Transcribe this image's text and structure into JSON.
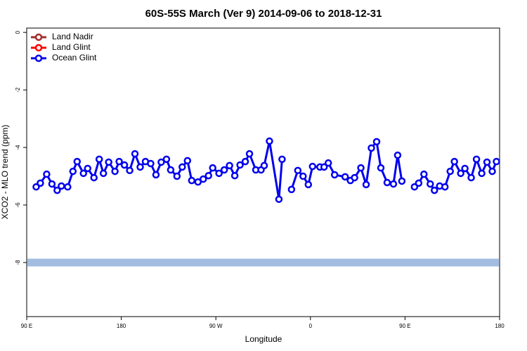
{
  "chart_data": {
    "type": "line",
    "title": "60S-55S March (Ver 9)   2014-09-06 to 2018-12-31",
    "xlabel": "Longitude",
    "ylabel": "XCO2 - MLO trend (ppm)",
    "xlim": [
      90,
      540
    ],
    "ylim": [
      -9.88,
      0.15
    ],
    "xticks": [
      {
        "value": 90,
        "label": "90 E"
      },
      180,
      {
        "value": 270,
        "label": "90 W"
      },
      {
        "value": 360,
        "label": "0"
      },
      {
        "value": 450,
        "label": "90 E"
      },
      {
        "value": 540,
        "label": "180"
      }
    ],
    "yticks": [
      0,
      -2,
      -4,
      -6,
      -8
    ],
    "hline": -8,
    "hline_color": "#a3bde0",
    "legend": "top-left",
    "x": [
      99,
      103,
      109,
      114,
      119,
      123,
      129,
      134,
      138,
      144,
      148,
      154,
      159,
      163,
      168,
      174,
      178,
      183,
      188,
      193,
      198,
      203,
      208,
      213,
      218,
      223,
      227,
      233,
      238,
      243,
      247,
      253,
      258,
      263,
      267,
      273,
      278,
      283,
      288,
      293,
      298,
      302,
      308,
      313,
      316,
      321,
      330,
      333,
      338,
      342,
      348,
      353,
      358,
      362,
      369,
      373,
      377,
      383,
      393,
      398,
      402,
      408,
      413,
      418,
      423,
      427,
      433,
      439,
      443,
      447,
      452,
      459,
      463,
      468,
      474,
      478,
      483,
      488,
      493,
      497,
      503,
      507,
      513,
      518,
      523,
      528,
      533,
      537
    ],
    "series": [
      {
        "name": "Land Nadir",
        "color": "#a52a2a",
        "values": [
          null,
          null,
          null,
          null,
          null,
          null,
          null,
          null,
          null,
          null,
          null,
          null,
          null,
          null,
          null,
          null,
          null,
          null,
          null,
          null,
          null,
          null,
          null,
          null,
          null,
          null,
          null,
          null,
          null,
          null,
          null,
          null,
          null,
          null,
          null,
          null,
          null,
          null,
          null,
          null,
          null,
          null,
          null,
          null,
          null,
          null,
          null,
          null,
          null,
          null,
          null,
          null,
          null,
          null,
          null,
          null,
          null,
          null,
          null,
          null,
          null,
          null,
          null,
          null,
          null,
          null,
          null,
          null,
          null,
          null,
          null,
          null,
          null,
          null,
          null,
          null,
          null,
          null,
          null,
          null,
          null,
          null,
          null,
          null,
          null,
          null,
          null,
          null
        ]
      },
      {
        "name": "Land Glint",
        "color": "#ff0000",
        "values": [
          null,
          null,
          null,
          null,
          null,
          null,
          null,
          null,
          null,
          null,
          null,
          null,
          null,
          null,
          null,
          null,
          null,
          null,
          null,
          null,
          null,
          null,
          null,
          null,
          null,
          null,
          null,
          null,
          null,
          null,
          null,
          null,
          null,
          null,
          null,
          null,
          null,
          null,
          null,
          null,
          null,
          null,
          null,
          null,
          null,
          null,
          null,
          null,
          null,
          null,
          null,
          null,
          null,
          null,
          null,
          null,
          null,
          null,
          null,
          null,
          null,
          null,
          null,
          null,
          null,
          null,
          null,
          null,
          null,
          null,
          null,
          null,
          null,
          null,
          null,
          null,
          null,
          null,
          null,
          null,
          null,
          null,
          null,
          null,
          null,
          null,
          null,
          null
        ]
      },
      {
        "name": "Ocean Glint",
        "color": "#0000ee",
        "values": [
          -5.37,
          -5.24,
          -4.93,
          -5.27,
          -5.49,
          -5.34,
          -5.37,
          -4.83,
          -4.49,
          -4.9,
          -4.73,
          -5.05,
          -4.41,
          -4.9,
          -4.51,
          -4.83,
          -4.49,
          -4.61,
          -4.8,
          -4.22,
          -4.68,
          -4.49,
          -4.56,
          -4.95,
          -4.51,
          -4.41,
          -4.78,
          -5.0,
          -4.68,
          -4.46,
          -5.15,
          -5.2,
          -5.1,
          -4.98,
          -4.71,
          -4.9,
          -4.78,
          -4.63,
          -4.98,
          -4.61,
          -4.49,
          -4.22,
          -4.78,
          -4.78,
          -4.63,
          -3.78,
          -5.8,
          -4.41,
          null,
          -5.46,
          -4.8,
          -5.0,
          -5.29,
          -4.66,
          -4.68,
          -4.68,
          -4.54,
          -4.95,
          -5.02,
          -5.15,
          -5.05,
          -4.71,
          -5.29,
          -4.02,
          -3.8,
          -4.71,
          -5.22,
          -5.27,
          -4.27,
          -5.17,
          null,
          -5.37,
          -5.24,
          -4.93,
          -5.27,
          -5.49,
          -5.34,
          -5.37,
          -4.83,
          -4.49,
          -4.9,
          -4.73,
          -5.05,
          -4.41,
          -4.9,
          -4.51,
          -4.83,
          -4.49
        ]
      }
    ]
  }
}
